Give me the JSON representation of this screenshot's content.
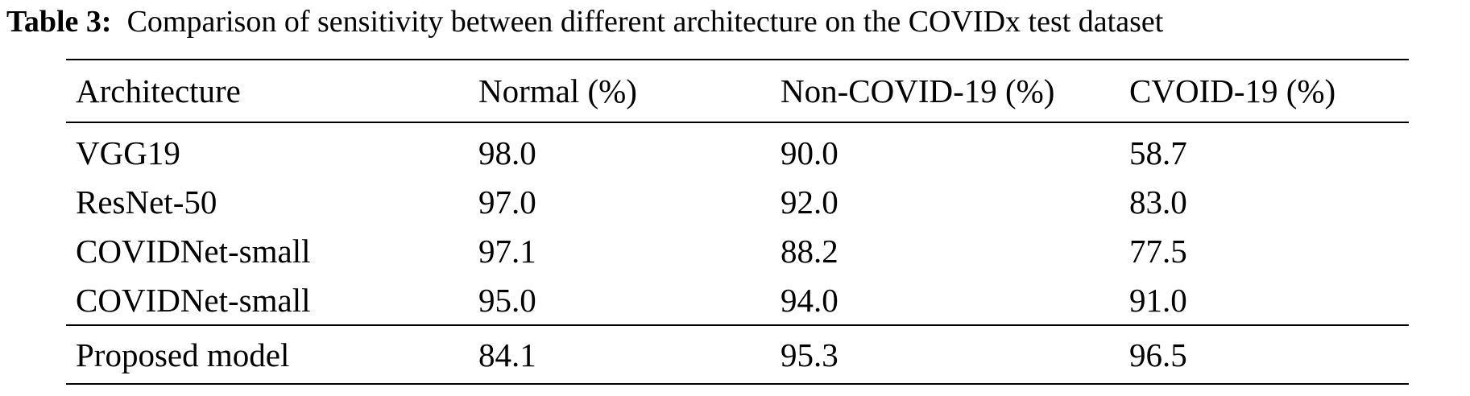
{
  "caption": {
    "label": "Table 3:",
    "text": "Comparison of sensitivity between different architecture on the COVIDx test dataset"
  },
  "table": {
    "headers": [
      "Architecture",
      "Normal (%)",
      "Non-COVID-19 (%)",
      "CVOID-19 (%)"
    ],
    "rows": [
      [
        "VGG19",
        "98.0",
        "90.0",
        "58.7"
      ],
      [
        "ResNet-50",
        "97.0",
        "92.0",
        "83.0"
      ],
      [
        "COVIDNet-small",
        "97.1",
        "88.2",
        "77.5"
      ],
      [
        "COVIDNet-small",
        "95.0",
        "94.0",
        "91.0"
      ]
    ],
    "final_row": [
      "Proposed model",
      "84.1",
      "95.3",
      "96.5"
    ]
  }
}
